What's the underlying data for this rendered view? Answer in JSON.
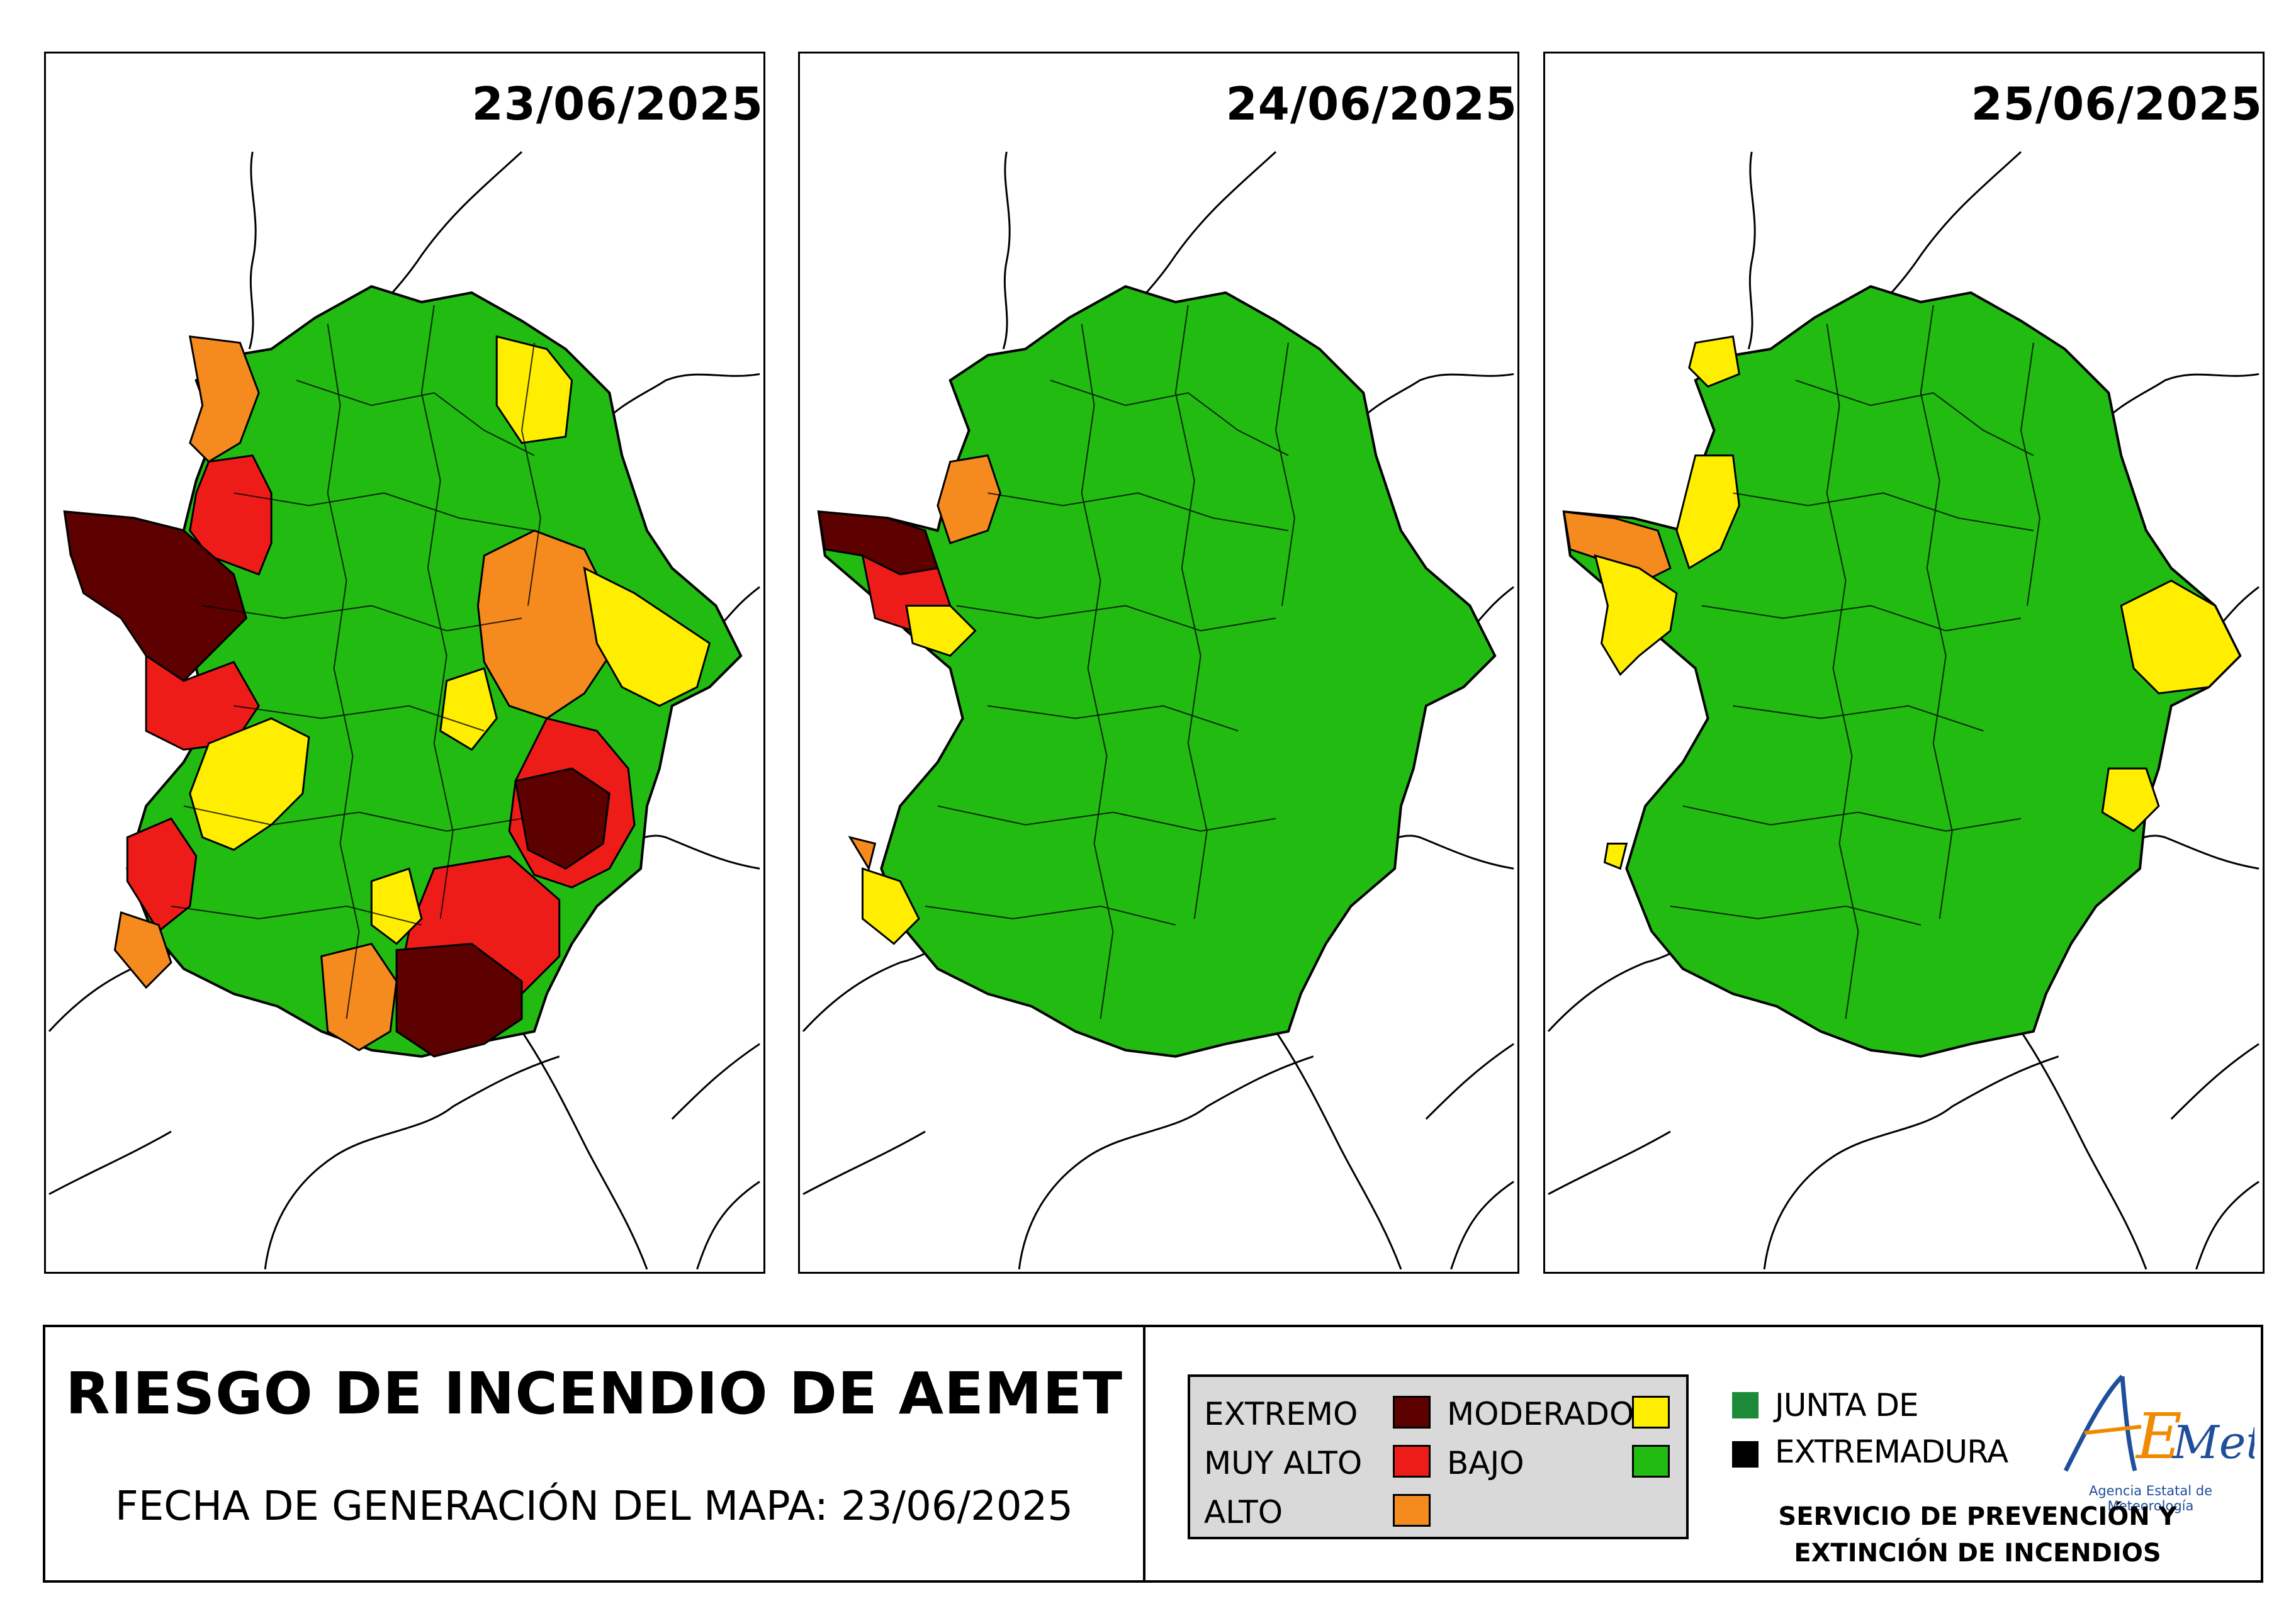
{
  "colors": {
    "extremo": "#5c0000",
    "muy_alto": "#ee1c18",
    "alto": "#f58a1f",
    "moderado": "#ffee00",
    "bajo": "#22bb11",
    "junta_green": "#1d8a3a",
    "junta_black": "#000000",
    "aemet_blue": "#1f4e9b",
    "aemet_orange": "#f08a00"
  },
  "maps": [
    {
      "date": "23/06/2025",
      "risk_zones": [
        "extremo",
        "muy_alto",
        "alto",
        "moderado",
        "bajo"
      ]
    },
    {
      "date": "24/06/2025",
      "risk_zones": [
        "extremo",
        "muy_alto",
        "alto",
        "moderado",
        "bajo"
      ]
    },
    {
      "date": "25/06/2025",
      "risk_zones": [
        "alto",
        "moderado",
        "bajo"
      ]
    }
  ],
  "footer": {
    "title": "RIESGO DE INCENDIO DE AEMET",
    "generation_date": "FECHA DE GENERACIÓN DEL MAPA: 23/06/2025"
  },
  "legend": {
    "extremo": "EXTREMO",
    "muy_alto": "MUY ALTO",
    "alto": "ALTO",
    "moderado": "MODERADO",
    "bajo": "BAJO"
  },
  "junta": {
    "line1": "JUNTA DE",
    "line2": "EXTREMADURA"
  },
  "aemet": {
    "logo_text": "AEMet",
    "subtitle": "Agencia Estatal de Meteorología"
  },
  "servicio": {
    "line1": "SERVICIO DE PREVENCIÓN Y",
    "line2": "EXTINCIÓN DE INCENDIOS"
  }
}
